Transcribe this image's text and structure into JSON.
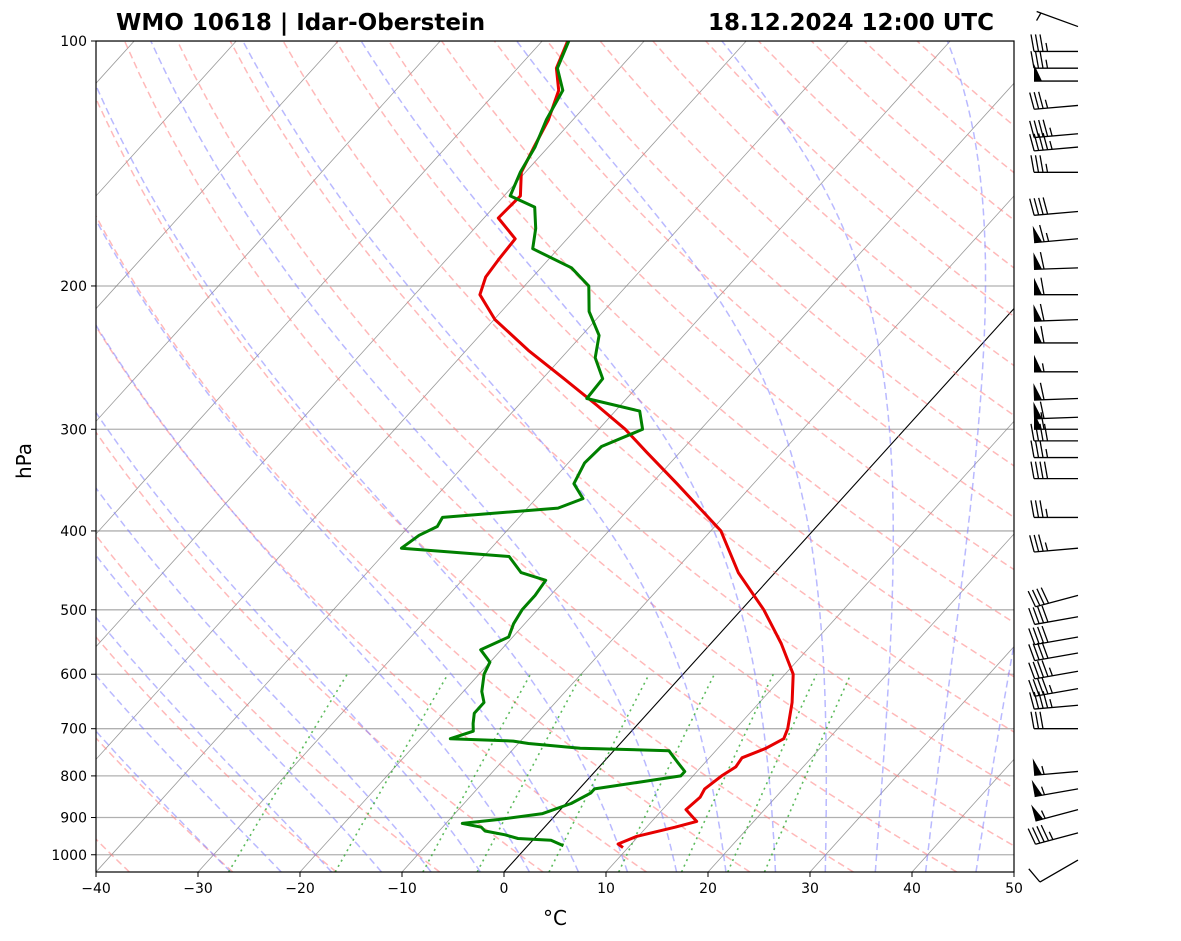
{
  "chart_data": {
    "type": "skew-t",
    "title_left": "WMO 10618 | Idar-Oberstein",
    "title_right": "18.12.2024 12:00 UTC",
    "xlabel": "°C",
    "ylabel": "hPa",
    "xlim": [
      -40,
      50
    ],
    "ylim": [
      1050,
      100
    ],
    "x_ticks": [
      -40,
      -30,
      -20,
      -10,
      0,
      10,
      20,
      30,
      40,
      50
    ],
    "x_tick_labels": [
      "−40",
      "−30",
      "−20",
      "−10",
      "0",
      "10",
      "20",
      "30",
      "40",
      "50"
    ],
    "y_ticks": [
      1000,
      900,
      800,
      700,
      600,
      500,
      400,
      300,
      200,
      100
    ],
    "y_tick_labels": [
      "1000",
      "900",
      "800",
      "700",
      "600",
      "500",
      "400",
      "300",
      "200",
      "100"
    ],
    "colors": {
      "temperature": "#e60000",
      "dewpoint": "#008000",
      "dry_adiabat": "#ff8080",
      "moist_adiabat": "#8080ff",
      "mixing_ratio": "#33aa33",
      "isotherm": "#808080",
      "grid": "#b0b0b0",
      "highlight_isotherm": "#000000"
    },
    "highlight_isotherm": 0,
    "temperature": [
      [
        980,
        9.5
      ],
      [
        970,
        8.7
      ],
      [
        950,
        9.8
      ],
      [
        925,
        12.8
      ],
      [
        910,
        14.4
      ],
      [
        900,
        13.7
      ],
      [
        880,
        12.3
      ],
      [
        850,
        12.6
      ],
      [
        830,
        12.3
      ],
      [
        800,
        12.8
      ],
      [
        780,
        13.4
      ],
      [
        760,
        13.2
      ],
      [
        740,
        14.7
      ],
      [
        720,
        15.6
      ],
      [
        700,
        15.1
      ],
      [
        650,
        13.2
      ],
      [
        600,
        10.8
      ],
      [
        550,
        6.9
      ],
      [
        500,
        2.2
      ],
      [
        450,
        -3.6
      ],
      [
        400,
        -9.0
      ],
      [
        350,
        -17.5
      ],
      [
        320,
        -23.3
      ],
      [
        300,
        -27.4
      ],
      [
        280,
        -32.4
      ],
      [
        260,
        -37.9
      ],
      [
        240,
        -43.9
      ],
      [
        220,
        -49.9
      ],
      [
        205,
        -53.6
      ],
      [
        195,
        -54.6
      ],
      [
        185,
        -54.9
      ],
      [
        175,
        -55.1
      ],
      [
        165,
        -58.6
      ],
      [
        155,
        -58.4
      ],
      [
        145,
        -60.4
      ],
      [
        135,
        -61.4
      ],
      [
        125,
        -62.4
      ],
      [
        115,
        -64.0
      ],
      [
        108,
        -66.2
      ],
      [
        100,
        -67.5
      ]
    ],
    "dewpoint": [
      [
        975,
        3.5
      ],
      [
        960,
        1.8
      ],
      [
        955,
        -1.6
      ],
      [
        945,
        -3.2
      ],
      [
        935,
        -5.5
      ],
      [
        925,
        -6.2
      ],
      [
        915,
        -8.4
      ],
      [
        905,
        -5.2
      ],
      [
        890,
        -1.4
      ],
      [
        865,
        0.5
      ],
      [
        840,
        1.5
      ],
      [
        830,
        1.5
      ],
      [
        815,
        5.1
      ],
      [
        800,
        8.8
      ],
      [
        790,
        8.8
      ],
      [
        770,
        7.3
      ],
      [
        745,
        5.4
      ],
      [
        740,
        -3.5
      ],
      [
        730,
        -9.0
      ],
      [
        725,
        -10.7
      ],
      [
        720,
        -17.1
      ],
      [
        705,
        -15.5
      ],
      [
        690,
        -16.2
      ],
      [
        670,
        -17.0
      ],
      [
        650,
        -17.0
      ],
      [
        630,
        -18.2
      ],
      [
        600,
        -19.5
      ],
      [
        580,
        -20.0
      ],
      [
        560,
        -22.0
      ],
      [
        540,
        -20.4
      ],
      [
        520,
        -21.1
      ],
      [
        500,
        -21.5
      ],
      [
        480,
        -21.5
      ],
      [
        460,
        -21.8
      ],
      [
        450,
        -24.9
      ],
      [
        430,
        -27.5
      ],
      [
        420,
        -38.8
      ],
      [
        405,
        -38.2
      ],
      [
        395,
        -37.2
      ],
      [
        385,
        -37.5
      ],
      [
        375,
        -27.0
      ],
      [
        365,
        -25.4
      ],
      [
        350,
        -27.6
      ],
      [
        330,
        -28.4
      ],
      [
        315,
        -28.2
      ],
      [
        300,
        -25.7
      ],
      [
        285,
        -27.6
      ],
      [
        275,
        -33.9
      ],
      [
        260,
        -34.1
      ],
      [
        245,
        -36.7
      ],
      [
        230,
        -38.3
      ],
      [
        215,
        -41.4
      ],
      [
        200,
        -43.7
      ],
      [
        190,
        -47.0
      ],
      [
        180,
        -52.5
      ],
      [
        170,
        -54.0
      ],
      [
        160,
        -56.0
      ],
      [
        155,
        -59.4
      ],
      [
        145,
        -60.5
      ],
      [
        135,
        -61.3
      ],
      [
        125,
        -62.6
      ],
      [
        115,
        -63.6
      ],
      [
        108,
        -66.1
      ],
      [
        100,
        -67.4
      ]
    ],
    "wind_barbs": [
      {
        "pressure": 1015,
        "direction": 240,
        "speed_kt": 10
      },
      {
        "pressure": 940,
        "direction": 255,
        "speed_kt": 45
      },
      {
        "pressure": 880,
        "direction": 255,
        "speed_kt": 55
      },
      {
        "pressure": 830,
        "direction": 260,
        "speed_kt": 55
      },
      {
        "pressure": 790,
        "direction": 265,
        "speed_kt": 55
      },
      {
        "pressure": 700,
        "direction": 270,
        "speed_kt": 30
      },
      {
        "pressure": 655,
        "direction": 265,
        "speed_kt": 45
      },
      {
        "pressure": 625,
        "direction": 260,
        "speed_kt": 45
      },
      {
        "pressure": 595,
        "direction": 260,
        "speed_kt": 45
      },
      {
        "pressure": 565,
        "direction": 260,
        "speed_kt": 40
      },
      {
        "pressure": 540,
        "direction": 260,
        "speed_kt": 40
      },
      {
        "pressure": 510,
        "direction": 260,
        "speed_kt": 40
      },
      {
        "pressure": 480,
        "direction": 255,
        "speed_kt": 40
      },
      {
        "pressure": 420,
        "direction": 265,
        "speed_kt": 35
      },
      {
        "pressure": 385,
        "direction": 270,
        "speed_kt": 35
      },
      {
        "pressure": 345,
        "direction": 270,
        "speed_kt": 40
      },
      {
        "pressure": 325,
        "direction": 270,
        "speed_kt": 35
      },
      {
        "pressure": 310,
        "direction": 270,
        "speed_kt": 40
      },
      {
        "pressure": 300,
        "direction": 270,
        "speed_kt": 60
      },
      {
        "pressure": 290,
        "direction": 268,
        "speed_kt": 60
      },
      {
        "pressure": 275,
        "direction": 268,
        "speed_kt": 60
      },
      {
        "pressure": 255,
        "direction": 270,
        "speed_kt": 55
      },
      {
        "pressure": 235,
        "direction": 270,
        "speed_kt": 60
      },
      {
        "pressure": 220,
        "direction": 268,
        "speed_kt": 60
      },
      {
        "pressure": 205,
        "direction": 270,
        "speed_kt": 60
      },
      {
        "pressure": 190,
        "direction": 268,
        "speed_kt": 60
      },
      {
        "pressure": 175,
        "direction": 265,
        "speed_kt": 65
      },
      {
        "pressure": 162,
        "direction": 265,
        "speed_kt": 40
      },
      {
        "pressure": 145,
        "direction": 270,
        "speed_kt": 35
      },
      {
        "pressure": 135,
        "direction": 265,
        "speed_kt": 45
      },
      {
        "pressure": 130,
        "direction": 265,
        "speed_kt": 45
      },
      {
        "pressure": 120,
        "direction": 265,
        "speed_kt": 35
      },
      {
        "pressure": 112,
        "direction": 270,
        "speed_kt": 50
      },
      {
        "pressure": 108,
        "direction": 270,
        "speed_kt": 35
      },
      {
        "pressure": 103,
        "direction": 270,
        "speed_kt": 35
      },
      {
        "pressure": 96,
        "direction": 290,
        "speed_kt": 5
      }
    ]
  }
}
